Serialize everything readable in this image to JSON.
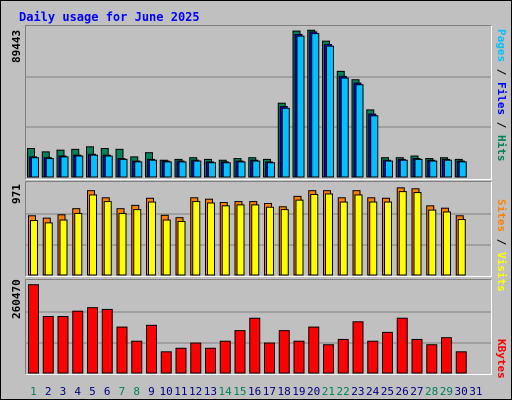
{
  "chart_title": "Daily usage for June 2025",
  "colors": {
    "hits": "#00805c",
    "files": "#0000ff",
    "pages": "#00c0ff",
    "visits": "#ffff00",
    "sites": "#ff8000",
    "kbytes": "#ff0000",
    "weekend_day": "#00805c",
    "weekday": "#000080"
  },
  "right_labels": {
    "top": [
      {
        "text": "Pages",
        "color": "#00c0ff"
      },
      {
        "text": " / ",
        "color": "#000000"
      },
      {
        "text": "Files",
        "color": "#0000ff"
      },
      {
        "text": " / ",
        "color": "#000000"
      },
      {
        "text": "Hits",
        "color": "#00805c"
      }
    ],
    "middle": [
      {
        "text": "Sites",
        "color": "#ff8000"
      },
      {
        "text": " / ",
        "color": "#000000"
      },
      {
        "text": "Visits",
        "color": "#ffff00"
      }
    ],
    "bottom": [
      {
        "text": "KBytes",
        "color": "#ff0000"
      }
    ]
  },
  "chart_data": {
    "type": "bar",
    "title": "Daily usage for June 2025",
    "categories": [
      "1",
      "2",
      "3",
      "4",
      "5",
      "6",
      "7",
      "8",
      "9",
      "10",
      "11",
      "12",
      "13",
      "14",
      "15",
      "16",
      "17",
      "18",
      "19",
      "20",
      "21",
      "22",
      "23",
      "24",
      "25",
      "26",
      "27",
      "28",
      "29",
      "30",
      "31"
    ],
    "weekend_days": [
      1,
      7,
      8,
      14,
      15,
      21,
      22,
      28,
      29
    ],
    "panels": [
      {
        "id": "top",
        "ymax_label": "89443",
        "ylim": [
          0,
          89443
        ],
        "series": [
          {
            "name": "Hits",
            "color": "#00805c",
            "values": [
              17000,
              15000,
              16000,
              16500,
              18000,
              17000,
              16500,
              12000,
              14500,
              10000,
              10500,
              11500,
              10500,
              10000,
              11000,
              11500,
              10500,
              44000,
              87000,
              87500,
              81000,
              63000,
              58000,
              40000,
              11500,
              11500,
              12500,
              11000,
              11500,
              10500
            ]
          },
          {
            "name": "Files",
            "color": "#0000ff",
            "values": [
              12000,
              11500,
              12500,
              13000,
              13500,
              13000,
              11000,
              9500,
              10500,
              9500,
              9500,
              10000,
              9000,
              9000,
              9500,
              10000,
              9000,
              42000,
              85000,
              86500,
              79000,
              60000,
              56000,
              37500,
              10000,
              10500,
              11000,
              10000,
              10500,
              9500
            ]
          },
          {
            "name": "Pages",
            "color": "#00c0ff",
            "values": [
              11500,
              11000,
              12000,
              12500,
              13000,
              12500,
              10500,
              9000,
              10000,
              9000,
              9000,
              9500,
              8500,
              8500,
              9000,
              9500,
              8500,
              41000,
              84000,
              85500,
              78000,
              59000,
              55000,
              36500,
              9500,
              10000,
              10500,
              9500,
              10000,
              9000
            ]
          }
        ]
      },
      {
        "id": "middle",
        "ymax_label": "971",
        "ylim": [
          0,
          971
        ],
        "series": [
          {
            "name": "Sites",
            "color": "#ff8000",
            "values": [
              625,
              600,
              635,
              700,
              890,
              815,
              700,
              735,
              810,
              630,
              605,
              815,
              800,
              765,
              775,
              775,
              755,
              720,
              830,
              890,
              890,
              815,
              890,
              815,
              810,
              920,
              910,
              730,
              705,
              625
            ]
          },
          {
            "name": "Visits",
            "color": "#ffff00",
            "values": [
              575,
              550,
              580,
              650,
              845,
              775,
              650,
              690,
              770,
              580,
              565,
              775,
              760,
              730,
              740,
              740,
              715,
              690,
              790,
              850,
              855,
              770,
              845,
              770,
              770,
              880,
              870,
              685,
              665,
              585
            ]
          }
        ]
      },
      {
        "id": "bottom",
        "ymax_label": "260470",
        "ylim": [
          0,
          260470
        ],
        "series": [
          {
            "name": "KBytes",
            "color": "#ff0000",
            "values": [
              250000,
              160000,
              160000,
              175000,
              185000,
              180000,
              130000,
              90000,
              135000,
              60000,
              70000,
              85000,
              70000,
              90000,
              120000,
              155000,
              85000,
              120000,
              90000,
              130000,
              80000,
              95000,
              145000,
              90000,
              115000,
              155000,
              95000,
              80000,
              100000,
              60000
            ]
          }
        ]
      }
    ]
  }
}
